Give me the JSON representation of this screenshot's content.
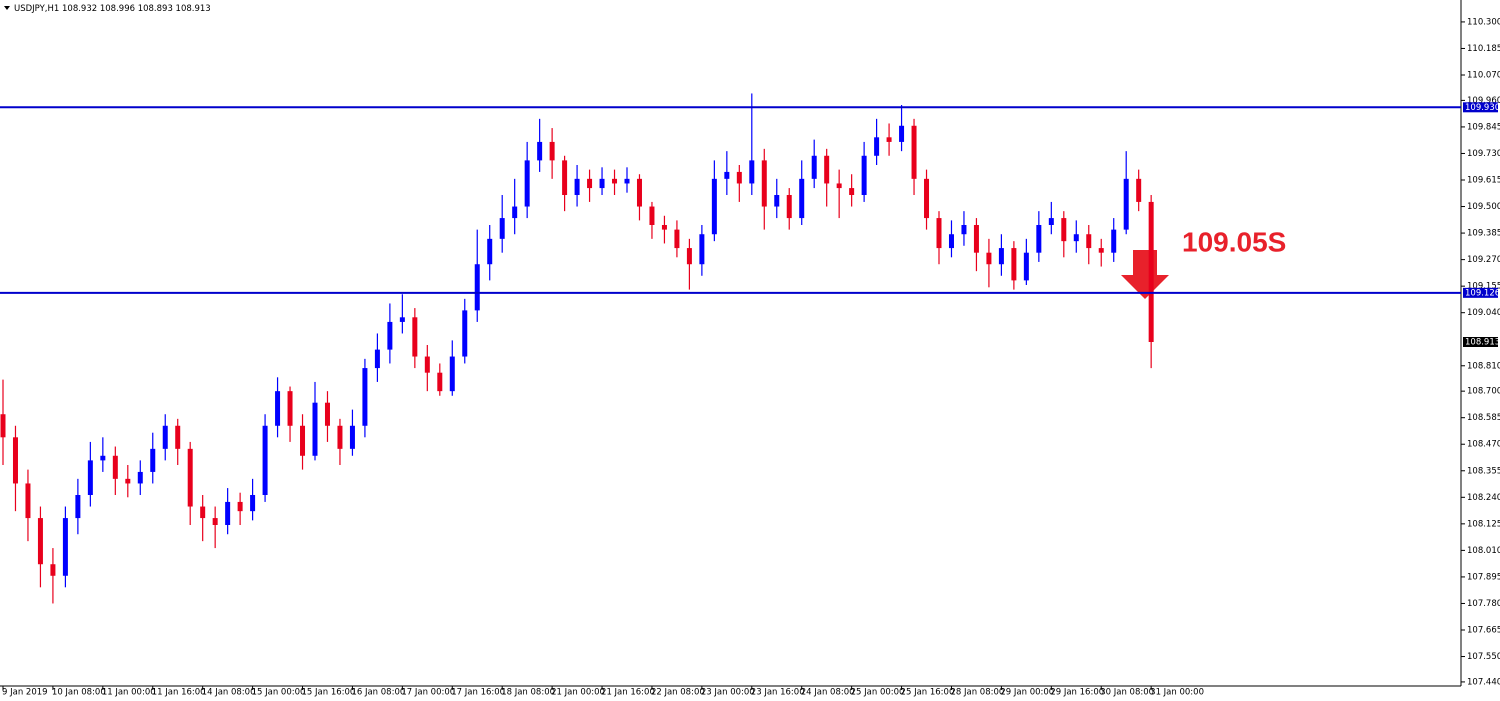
{
  "chart_data": {
    "type": "candlestick",
    "title": "USDJPY,H1  108.932 108.996 108.893 108.913",
    "annotation": "109.05S",
    "up_color": "#0000ff",
    "down_color": "#e8001c",
    "categories": [
      "9 Jan 2019",
      null,
      null,
      null,
      "10 Jan 08:00",
      null,
      null,
      null,
      "11 Jan 00:00",
      null,
      null,
      null,
      "11 Jan 16:00",
      null,
      null,
      null,
      "14 Jan 08:00",
      null,
      null,
      null,
      "15 Jan 00:00",
      null,
      null,
      null,
      "15 Jan 16:00",
      null,
      null,
      null,
      "16 Jan 08:00",
      null,
      null,
      null,
      "17 Jan 00:00",
      null,
      null,
      null,
      "17 Jan 16:00",
      null,
      null,
      null,
      "18 Jan 08:00",
      null,
      null,
      null,
      "21 Jan 00:00",
      null,
      null,
      null,
      "21 Jan 16:00",
      null,
      null,
      null,
      "22 Jan 08:00",
      null,
      null,
      null,
      "23 Jan 00:00",
      null,
      null,
      null,
      "23 Jan 16:00",
      null,
      null,
      null,
      "24 Jan 08:00",
      null,
      null,
      null,
      "25 Jan 00:00",
      null,
      null,
      null,
      "25 Jan 16:00",
      null,
      null,
      null,
      "28 Jan 08:00",
      null,
      null,
      null,
      "29 Jan 00:00",
      null,
      null,
      null,
      "29 Jan 16:00",
      null,
      null,
      null,
      "30 Jan 08:00",
      null,
      null,
      null,
      "31 Jan 00:00"
    ],
    "open": [
      108.6,
      108.5,
      108.3,
      108.15,
      107.95,
      107.9,
      108.15,
      108.25,
      108.4,
      108.42,
      108.32,
      108.3,
      108.35,
      108.45,
      108.55,
      108.45,
      108.2,
      108.15,
      108.12,
      108.22,
      108.18,
      108.25,
      108.55,
      108.7,
      108.55,
      108.42,
      108.65,
      108.55,
      108.45,
      108.55,
      108.8,
      108.88,
      109.0,
      109.02,
      108.85,
      108.78,
      108.7,
      108.85,
      109.05,
      109.25,
      109.36,
      109.45,
      109.5,
      109.7,
      109.78,
      109.7,
      109.55,
      109.62,
      109.58,
      109.62,
      109.6,
      109.62,
      109.5,
      109.42,
      109.4,
      109.32,
      109.25,
      109.38,
      109.62,
      109.65,
      109.6,
      109.7,
      109.5,
      109.55,
      109.45,
      109.62,
      109.72,
      109.6,
      109.58,
      109.55,
      109.72,
      109.8,
      109.78,
      109.85,
      109.62,
      109.45,
      109.32,
      109.38,
      109.42,
      109.3,
      109.25,
      109.32,
      109.18,
      109.3,
      109.42,
      109.45,
      109.35,
      109.38,
      109.32,
      109.3,
      109.4,
      109.62,
      109.52
    ],
    "high": [
      108.75,
      108.55,
      108.36,
      108.2,
      108.02,
      108.2,
      108.32,
      108.48,
      108.5,
      108.46,
      108.38,
      108.4,
      108.52,
      108.6,
      108.58,
      108.48,
      108.25,
      108.2,
      108.28,
      108.26,
      108.32,
      108.6,
      108.76,
      108.72,
      108.6,
      108.74,
      108.7,
      108.58,
      108.62,
      108.84,
      108.95,
      109.08,
      109.12,
      109.06,
      108.9,
      108.82,
      108.92,
      109.1,
      109.4,
      109.42,
      109.55,
      109.62,
      109.78,
      109.88,
      109.84,
      109.72,
      109.68,
      109.66,
      109.67,
      109.66,
      109.67,
      109.64,
      109.52,
      109.46,
      109.44,
      109.36,
      109.42,
      109.7,
      109.74,
      109.68,
      109.99,
      109.75,
      109.62,
      109.58,
      109.7,
      109.79,
      109.75,
      109.66,
      109.64,
      109.78,
      109.88,
      109.86,
      109.94,
      109.88,
      109.66,
      109.48,
      109.44,
      109.48,
      109.45,
      109.36,
      109.38,
      109.35,
      109.36,
      109.48,
      109.52,
      109.48,
      109.44,
      109.42,
      109.36,
      109.45,
      109.74,
      109.66,
      109.55
    ],
    "low": [
      108.38,
      108.18,
      108.05,
      107.85,
      107.78,
      107.85,
      108.08,
      108.2,
      108.35,
      108.25,
      108.24,
      108.25,
      108.3,
      108.4,
      108.38,
      108.12,
      108.05,
      108.02,
      108.08,
      108.12,
      108.14,
      108.22,
      108.5,
      108.48,
      108.36,
      108.4,
      108.48,
      108.38,
      108.42,
      108.5,
      108.74,
      108.82,
      108.95,
      108.8,
      108.7,
      108.68,
      108.68,
      108.82,
      109.0,
      109.18,
      109.3,
      109.38,
      109.45,
      109.65,
      109.62,
      109.48,
      109.5,
      109.52,
      109.55,
      109.55,
      109.56,
      109.44,
      109.36,
      109.34,
      109.28,
      109.14,
      109.2,
      109.35,
      109.55,
      109.52,
      109.55,
      109.4,
      109.45,
      109.4,
      109.42,
      109.58,
      109.5,
      109.45,
      109.5,
      109.52,
      109.68,
      109.72,
      109.74,
      109.55,
      109.4,
      109.25,
      109.28,
      109.33,
      109.22,
      109.15,
      109.2,
      109.14,
      109.16,
      109.26,
      109.38,
      109.28,
      109.3,
      109.25,
      109.24,
      109.26,
      109.38,
      109.48,
      108.8
    ],
    "close": [
      108.5,
      108.3,
      108.15,
      107.95,
      107.9,
      108.15,
      108.25,
      108.4,
      108.42,
      108.32,
      108.3,
      108.35,
      108.45,
      108.55,
      108.45,
      108.2,
      108.15,
      108.12,
      108.22,
      108.18,
      108.25,
      108.55,
      108.7,
      108.55,
      108.42,
      108.65,
      108.55,
      108.45,
      108.55,
      108.8,
      108.88,
      109.0,
      109.02,
      108.85,
      108.78,
      108.7,
      108.85,
      109.05,
      109.25,
      109.36,
      109.45,
      109.5,
      109.7,
      109.78,
      109.7,
      109.55,
      109.62,
      109.58,
      109.62,
      109.6,
      109.62,
      109.5,
      109.42,
      109.4,
      109.32,
      109.25,
      109.38,
      109.62,
      109.65,
      109.6,
      109.7,
      109.5,
      109.55,
      109.45,
      109.62,
      109.72,
      109.6,
      109.58,
      109.55,
      109.72,
      109.8,
      109.78,
      109.85,
      109.62,
      109.45,
      109.32,
      109.38,
      109.42,
      109.3,
      109.25,
      109.32,
      109.18,
      109.3,
      109.42,
      109.45,
      109.35,
      109.38,
      109.32,
      109.3,
      109.4,
      109.62,
      109.52,
      108.913
    ],
    "ylim": [
      107.405,
      110.395
    ],
    "yticks": [
      {
        "value": 110.3,
        "label": "110.300"
      },
      {
        "value": 110.185,
        "label": "110.185"
      },
      {
        "value": 110.07,
        "label": "110.070"
      },
      {
        "value": 109.96,
        "label": "109.960"
      },
      {
        "value": 109.845,
        "label": "109.845"
      },
      {
        "value": 109.73,
        "label": "109.730"
      },
      {
        "value": 109.615,
        "label": "109.615"
      },
      {
        "value": 109.5,
        "label": "109.500"
      },
      {
        "value": 109.385,
        "label": "109.385"
      },
      {
        "value": 109.27,
        "label": "109.270"
      },
      {
        "value": 109.155,
        "label": "109.155"
      },
      {
        "value": 109.04,
        "label": "109.040"
      },
      {
        "value": 108.81,
        "label": "108.810"
      },
      {
        "value": 108.7,
        "label": "108.700"
      },
      {
        "value": 108.585,
        "label": "108.585"
      },
      {
        "value": 108.47,
        "label": "108.470"
      },
      {
        "value": 108.355,
        "label": "108.355"
      },
      {
        "value": 108.24,
        "label": "108.240"
      },
      {
        "value": 108.125,
        "label": "108.125"
      },
      {
        "value": 108.01,
        "label": "108.010"
      },
      {
        "value": 107.895,
        "label": "107.895"
      },
      {
        "value": 107.78,
        "label": "107.780"
      },
      {
        "value": 107.665,
        "label": "107.665"
      },
      {
        "value": 107.55,
        "label": "107.550"
      },
      {
        "value": 107.44,
        "label": "107.440"
      }
    ],
    "levels": [
      {
        "value": 109.93,
        "label": "109.930"
      },
      {
        "value": 109.126,
        "label": "109.126"
      }
    ],
    "level_color": "#0000cc",
    "last_price": {
      "value": 108.913,
      "label": "108.913"
    }
  }
}
